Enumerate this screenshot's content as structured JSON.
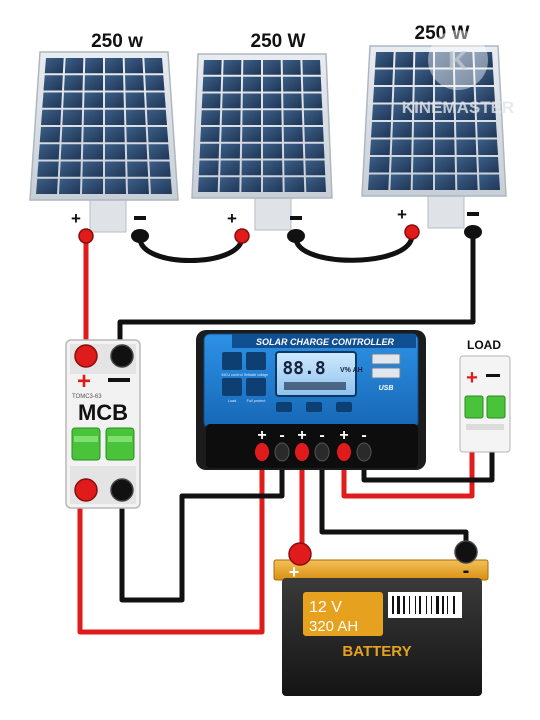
{
  "panels": [
    {
      "label": "250 w"
    },
    {
      "label": "250 W"
    },
    {
      "label": "250 W"
    }
  ],
  "terminal_plus": "+",
  "terminal_minus": "-",
  "watermark": "KINEMASTER",
  "mcb": {
    "label": "MCB",
    "model": "TOMC3-63"
  },
  "controller": {
    "title": "SOLAR CHARGE CONTROLLER",
    "display_value": "88.8",
    "display_units": "V% AH",
    "usb_label": "USB",
    "left_labels": [
      "MCU control",
      "Load"
    ],
    "right_labels": [
      "Settable voltage",
      "Full protect"
    ]
  },
  "load": {
    "label": "LOAD"
  },
  "battery": {
    "voltage": "12 V",
    "capacity": "320 AH",
    "label": "BATTERY"
  },
  "colors": {
    "positive_wire": "#e01b1b",
    "negative_wire": "#111111",
    "controller_blue": "#1f7fd1",
    "battery_gold": "#e6a21e",
    "panel_cell": "#2d4a6e"
  }
}
